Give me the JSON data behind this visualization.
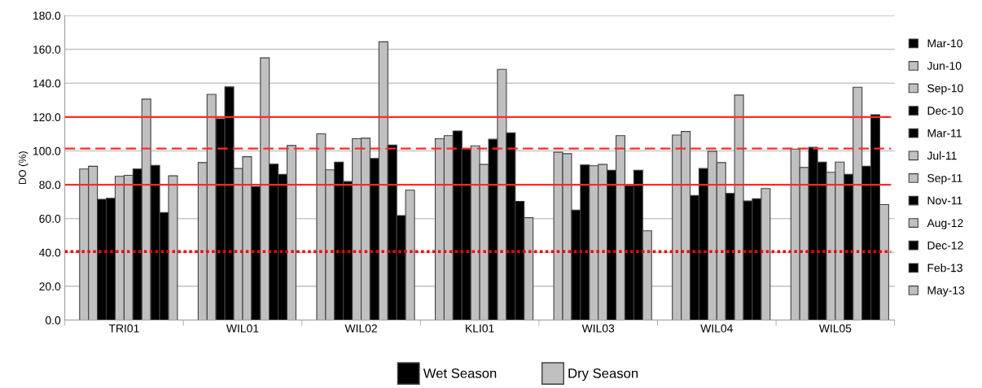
{
  "chart_data": {
    "type": "bar",
    "ylabel": "DO (%)",
    "categories": [
      "TRI01",
      "WIL01",
      "WIL02",
      "KLI01",
      "WIL03",
      "WIL04",
      "WIL05"
    ],
    "ylim": [
      0,
      180
    ],
    "yticks": [
      {
        "value": 0,
        "label": "0.0"
      },
      {
        "value": 20,
        "label": "20.0"
      },
      {
        "value": 40,
        "label": "40.0"
      },
      {
        "value": 60,
        "label": "60.0"
      },
      {
        "value": 80,
        "label": "80.0"
      },
      {
        "value": 100,
        "label": "100.0"
      },
      {
        "value": 120,
        "label": "120.0"
      },
      {
        "value": 140,
        "label": "140.0"
      },
      {
        "value": 160,
        "label": "160.0"
      },
      {
        "value": 180,
        "label": "180.0"
      }
    ],
    "grid": "y",
    "legend": "right",
    "series": [
      {
        "name": "Mar-10",
        "color": "#000000",
        "values": [
          null,
          null,
          null,
          null,
          null,
          null,
          null
        ]
      },
      {
        "name": "Jun-10",
        "color": "#c0c0c0",
        "values": [
          89.3,
          93.1,
          110.1,
          107.2,
          99.2,
          109.4,
          101.1
        ]
      },
      {
        "name": "Sep-10",
        "color": "#c0c0c0",
        "values": [
          90.9,
          133.4,
          88.8,
          109.0,
          98.4,
          111.5,
          90.2
        ]
      },
      {
        "name": "Dec-10",
        "color": "#000000",
        "values": [
          71.4,
          119.0,
          93.4,
          111.8,
          65.0,
          73.6,
          102.1
        ]
      },
      {
        "name": "Mar-11",
        "color": "#000000",
        "values": [
          72.0,
          137.8,
          81.9,
          101.4,
          91.7,
          89.6,
          93.4
        ]
      },
      {
        "name": "Jul-11",
        "color": "#c0c0c0",
        "values": [
          85.0,
          89.6,
          107.2,
          103.0,
          91.2,
          99.8,
          87.4
        ]
      },
      {
        "name": "Sep-11",
        "color": "#c0c0c0",
        "values": [
          85.6,
          96.6,
          107.5,
          92.0,
          92.0,
          93.1,
          93.4
        ]
      },
      {
        "name": "Nov-11",
        "color": "#000000",
        "values": [
          89.3,
          79.0,
          95.5,
          106.9,
          88.5,
          74.9,
          86.2
        ]
      },
      {
        "name": "Aug-12",
        "color": "#c0c0c0",
        "values": [
          130.6,
          155.0,
          164.5,
          148.2,
          109.0,
          133.0,
          137.6
        ]
      },
      {
        "name": "Dec-12",
        "color": "#000000",
        "values": [
          91.4,
          92.2,
          103.4,
          110.7,
          79.4,
          70.4,
          90.9
        ]
      },
      {
        "name": "Feb-13",
        "color": "#000000",
        "values": [
          63.5,
          86.1,
          61.8,
          70.2,
          88.5,
          71.7,
          121.4
        ]
      },
      {
        "name": "May-13",
        "color": "#c0c0c0",
        "values": [
          85.3,
          103.2,
          76.8,
          60.5,
          52.8,
          77.8,
          68.3
        ]
      }
    ],
    "ref_lines": [
      {
        "axis": "y",
        "value": 120,
        "color": "#ff2a2a",
        "line_style": "solid"
      },
      {
        "axis": "y",
        "value": 101.4,
        "color": "#ff2a2a",
        "line_style": "dashed"
      },
      {
        "axis": "y",
        "value": 80,
        "color": "#ff2a2a",
        "line_style": "solid"
      },
      {
        "axis": "y",
        "value": 40.5,
        "color": "#ff0000",
        "line_style": "dotted"
      }
    ],
    "annotations": [
      "Wet Season",
      "Dry Season"
    ]
  }
}
